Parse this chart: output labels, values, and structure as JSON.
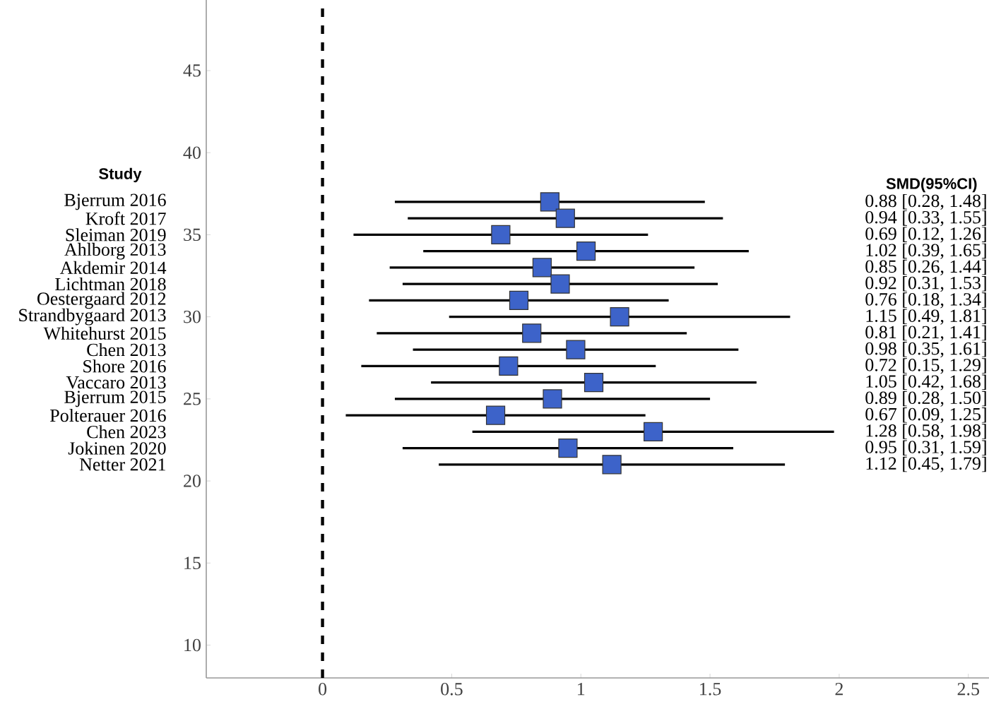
{
  "chart_data": {
    "type": "scatter",
    "marker": "square",
    "xlim": [
      -0.45,
      2.58
    ],
    "ylim": [
      8,
      49.3
    ],
    "xticks": [
      0,
      0.5,
      1,
      1.5,
      2,
      2.5
    ],
    "yticks": [
      10,
      15,
      20,
      25,
      30,
      35,
      40,
      45
    ],
    "ref_lines": [
      {
        "axis": "x",
        "value": 0,
        "color": "#000000",
        "line_style": "dashed"
      }
    ],
    "series": [
      {
        "color": "#3d63c9",
        "x": [
          0.88,
          0.94,
          0.69,
          1.02,
          0.85,
          0.92,
          0.76,
          1.15,
          0.81,
          0.98,
          0.72,
          1.05,
          0.89,
          0.67,
          1.28,
          0.95,
          1.12
        ],
        "values": [
          37,
          36,
          35,
          34,
          33,
          32,
          31,
          30,
          29,
          28,
          27,
          26,
          25,
          24,
          23,
          22,
          21
        ],
        "xerrors": [
          [
            0.28,
            1.48
          ],
          [
            0.33,
            1.55
          ],
          [
            0.12,
            1.26
          ],
          [
            0.39,
            1.65
          ],
          [
            0.26,
            1.44
          ],
          [
            0.31,
            1.53
          ],
          [
            0.18,
            1.34
          ],
          [
            0.49,
            1.81
          ],
          [
            0.21,
            1.41
          ],
          [
            0.35,
            1.61
          ],
          [
            0.15,
            1.29
          ],
          [
            0.42,
            1.68
          ],
          [
            0.28,
            1.5
          ],
          [
            0.09,
            1.25
          ],
          [
            0.58,
            1.98
          ],
          [
            0.31,
            1.59
          ],
          [
            0.45,
            1.79
          ]
        ]
      }
    ],
    "annotations": [
      "Study",
      "SMD(95%CI)",
      "Bjerrum 2016",
      "Kroft 2017",
      "Sleiman 2019",
      "Ahlborg 2013",
      "Akdemir 2014",
      "Lichtman 2018",
      "Oestergaard 2012",
      "Strandbygaard 2013",
      "Whitehurst 2015",
      "Chen 2013",
      "Shore 2016",
      "Vaccaro 2013",
      "Bjerrum 2015",
      "Polterauer 2016",
      "Chen 2023",
      "Jokinen 2020",
      "Netter 2021",
      "0.88 [0.28, 1.48]",
      "0.94 [0.33, 1.55]",
      "0.69 [0.12, 1.26]",
      "1.02 [0.39, 1.65]",
      "0.85 [0.26, 1.44]",
      "0.92 [0.31, 1.53]",
      "0.76 [0.18, 1.34]",
      "1.15 [0.49, 1.81]",
      "0.81 [0.21, 1.41]",
      "0.98 [0.35, 1.61]",
      "0.72 [0.15, 1.29]",
      "1.05 [0.42, 1.68]",
      "0.89 [0.28, 1.50]",
      "0.67 [0.09, 1.25]",
      "1.28 [0.58, 1.98]",
      "0.95 [0.31, 1.59]",
      "1.12 [0.45, 1.79]"
    ]
  }
}
